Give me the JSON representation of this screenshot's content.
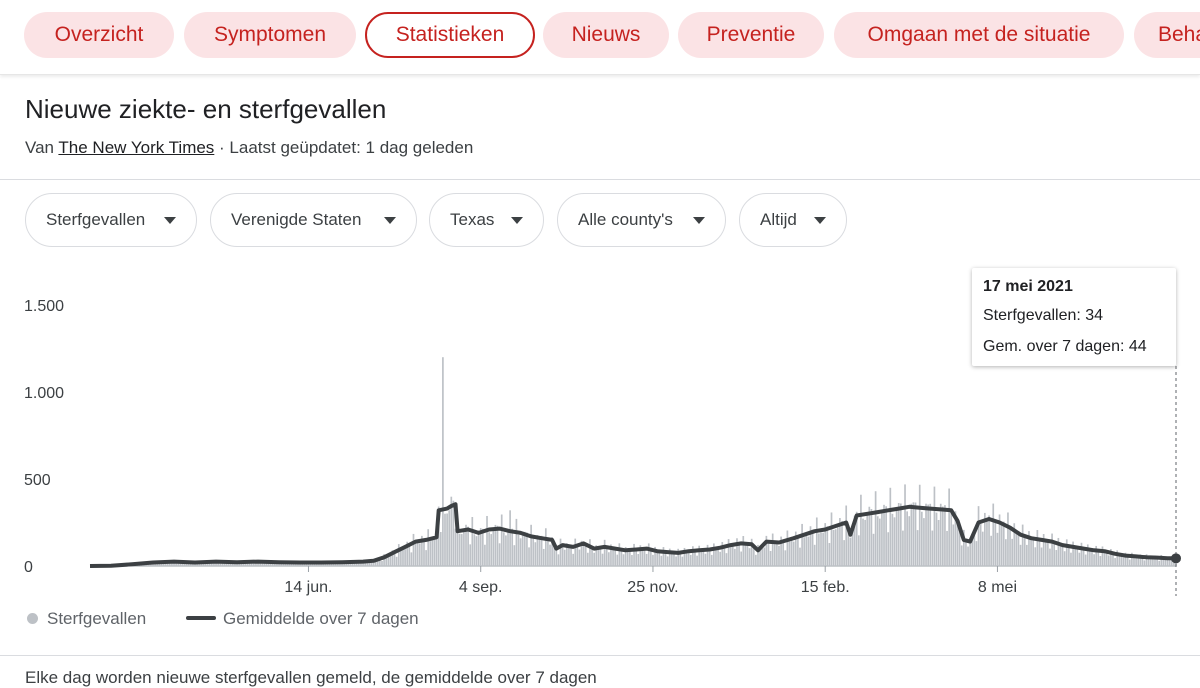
{
  "tabs": [
    {
      "label": "Overzicht"
    },
    {
      "label": "Symptomen"
    },
    {
      "label": "Statistieken"
    },
    {
      "label": "Nieuws"
    },
    {
      "label": "Preventie"
    },
    {
      "label": "Omgaan met de situatie"
    },
    {
      "label": "Behandelingen"
    }
  ],
  "header": {
    "title": "Nieuwe ziekte- en sterfgevallen",
    "source_prefix": "Van ",
    "source_name": "The New York Times",
    "source_suffix": " · Laatst geüpdatet: 1 dag geleden"
  },
  "filters": [
    {
      "label": "Sterfgevallen"
    },
    {
      "label": "Verenigde Staten"
    },
    {
      "label": "Texas"
    },
    {
      "label": "Alle county's"
    },
    {
      "label": "Altijd"
    }
  ],
  "tooltip": {
    "date": "17 mei 2021",
    "daily": "Sterfgevallen: 34",
    "avg": "Gem. over 7 dagen: 44"
  },
  "legend": {
    "daily": "Sterfgevallen",
    "avg": "Gemiddelde over 7 dagen"
  },
  "footer_text": "Elke dag worden nieuwe sterfgevallen gemeld, de gemiddelde over 7 dagen",
  "colors": {
    "bar": "#bdc1c6",
    "line": "#3c4043",
    "accent": "#c5221f",
    "tab_bg": "#fbe3e5"
  },
  "chart_data": {
    "type": "bar",
    "title": "Nieuwe ziekte- en sterfgevallen",
    "xlabel": "",
    "ylabel": "",
    "ylim": [
      0,
      1500
    ],
    "yticks": [
      0,
      500,
      1000,
      1500
    ],
    "ytick_labels": [
      "0",
      "500",
      "1.000",
      "1.500"
    ],
    "xtick_labels": [
      "14 jun.",
      "4 sep.",
      "25 nov.",
      "15 feb.",
      "8 mei"
    ],
    "xtick_days": [
      104,
      186,
      268,
      350,
      432
    ],
    "x_start": "2020-03-01",
    "x_end": "2021-05-17",
    "series": [
      {
        "name": "Gemiddelde over 7 dagen",
        "kind": "line",
        "points": [
          [
            0,
            0
          ],
          [
            10,
            2
          ],
          [
            20,
            10
          ],
          [
            30,
            20
          ],
          [
            40,
            25
          ],
          [
            50,
            20
          ],
          [
            60,
            25
          ],
          [
            70,
            22
          ],
          [
            80,
            25
          ],
          [
            90,
            22
          ],
          [
            100,
            20
          ],
          [
            110,
            20
          ],
          [
            120,
            22
          ],
          [
            130,
            25
          ],
          [
            135,
            30
          ],
          [
            140,
            50
          ],
          [
            145,
            80
          ],
          [
            150,
            110
          ],
          [
            155,
            140
          ],
          [
            160,
            150
          ],
          [
            165,
            165
          ],
          [
            166,
            320
          ],
          [
            170,
            330
          ],
          [
            172,
            345
          ],
          [
            174,
            355
          ],
          [
            175,
            200
          ],
          [
            180,
            210
          ],
          [
            185,
            190
          ],
          [
            190,
            210
          ],
          [
            195,
            215
          ],
          [
            200,
            200
          ],
          [
            205,
            190
          ],
          [
            210,
            170
          ],
          [
            215,
            160
          ],
          [
            220,
            150
          ],
          [
            222,
            100
          ],
          [
            225,
            120
          ],
          [
            230,
            110
          ],
          [
            235,
            130
          ],
          [
            240,
            100
          ],
          [
            245,
            110
          ],
          [
            250,
            100
          ],
          [
            255,
            90
          ],
          [
            260,
            95
          ],
          [
            265,
            100
          ],
          [
            270,
            85
          ],
          [
            275,
            80
          ],
          [
            280,
            75
          ],
          [
            285,
            85
          ],
          [
            290,
            90
          ],
          [
            295,
            95
          ],
          [
            300,
            105
          ],
          [
            305,
            120
          ],
          [
            310,
            130
          ],
          [
            315,
            125
          ],
          [
            318,
            90
          ],
          [
            322,
            140
          ],
          [
            328,
            135
          ],
          [
            335,
            160
          ],
          [
            340,
            180
          ],
          [
            345,
            200
          ],
          [
            350,
            210
          ],
          [
            355,
            230
          ],
          [
            360,
            250
          ],
          [
            362,
            180
          ],
          [
            365,
            290
          ],
          [
            370,
            300
          ],
          [
            375,
            310
          ],
          [
            380,
            320
          ],
          [
            385,
            330
          ],
          [
            390,
            340
          ],
          [
            395,
            335
          ],
          [
            400,
            330
          ],
          [
            405,
            325
          ],
          [
            410,
            320
          ],
          [
            413,
            260
          ],
          [
            416,
            150
          ],
          [
            419,
            140
          ],
          [
            423,
            250
          ],
          [
            428,
            270
          ],
          [
            433,
            250
          ],
          [
            438,
            220
          ],
          [
            443,
            180
          ],
          [
            448,
            160
          ],
          [
            453,
            150
          ],
          [
            458,
            140
          ],
          [
            463,
            120
          ],
          [
            468,
            110
          ],
          [
            473,
            100
          ],
          [
            478,
            90
          ],
          [
            483,
            85
          ],
          [
            488,
            70
          ],
          [
            493,
            60
          ],
          [
            498,
            55
          ],
          [
            503,
            50
          ],
          [
            508,
            48
          ],
          [
            513,
            45
          ],
          [
            517,
            44
          ]
        ]
      },
      {
        "name": "Sterfgevallen",
        "kind": "bar",
        "note": "daily values fluctuate around the 7-day average",
        "spike": {
          "day": 168,
          "value": 1200
        },
        "last": {
          "date": "17 mei 2021",
          "value": 34
        }
      }
    ],
    "legend_position": "bottom-left"
  }
}
